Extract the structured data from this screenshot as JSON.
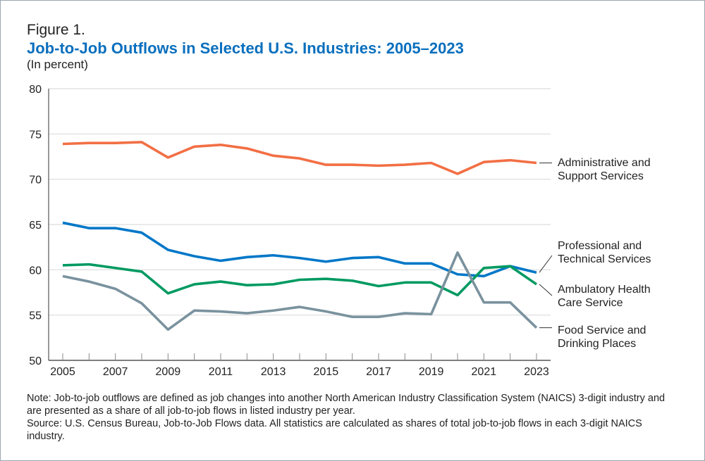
{
  "header": {
    "figure_label": "Figure 1.",
    "title": "Job-to-Job Outflows in Selected U.S. Industries: 2005–2023",
    "subtitle": "(In percent)"
  },
  "chart_data": {
    "type": "line",
    "title": "Job-to-Job Outflows in Selected U.S. Industries: 2005–2023",
    "ylabel": "(In percent)",
    "ylim": [
      50,
      80
    ],
    "yticks": [
      50,
      55,
      60,
      65,
      70,
      75,
      80
    ],
    "x": [
      2005,
      2006,
      2007,
      2008,
      2009,
      2010,
      2011,
      2012,
      2013,
      2014,
      2015,
      2016,
      2017,
      2018,
      2019,
      2020,
      2021,
      2022,
      2023
    ],
    "xtick_labels": [
      "2005",
      "2007",
      "2009",
      "2011",
      "2013",
      "2015",
      "2017",
      "2019",
      "2021",
      "2023"
    ],
    "grid": "horizontal",
    "legend": "direct labels right",
    "series": [
      {
        "name": "Administrative and Support Services",
        "label_lines": [
          "Administrative and",
          "Support Services"
        ],
        "color": "#f26f44",
        "values": [
          73.9,
          74.0,
          74.0,
          74.1,
          72.4,
          73.6,
          73.8,
          73.4,
          72.6,
          72.3,
          71.6,
          71.6,
          71.5,
          71.6,
          71.8,
          70.6,
          71.9,
          72.1,
          71.8
        ]
      },
      {
        "name": "Professional and Technical Services",
        "label_lines": [
          "Professional and",
          "Technical Services"
        ],
        "color": "#0077c8",
        "values": [
          65.2,
          64.6,
          64.6,
          64.1,
          62.2,
          61.5,
          61.0,
          61.4,
          61.6,
          61.3,
          60.9,
          61.3,
          61.4,
          60.7,
          60.7,
          59.5,
          59.3,
          60.4,
          59.7
        ]
      },
      {
        "name": "Ambulatory Health Care Service",
        "label_lines": [
          "Ambulatory Health",
          "Care Service"
        ],
        "color": "#009a61",
        "values": [
          60.5,
          60.6,
          60.2,
          59.8,
          57.4,
          58.4,
          58.7,
          58.3,
          58.4,
          58.9,
          59.0,
          58.8,
          58.2,
          58.6,
          58.6,
          57.2,
          60.2,
          60.4,
          58.4
        ]
      },
      {
        "name": "Food Service and Drinking Places",
        "label_lines": [
          "Food Service and",
          "Drinking Places"
        ],
        "color": "#7a929e",
        "values": [
          59.3,
          58.7,
          57.9,
          56.3,
          53.4,
          55.5,
          55.4,
          55.2,
          55.5,
          55.9,
          55.4,
          54.8,
          54.8,
          55.2,
          55.1,
          61.9,
          56.4,
          56.4,
          53.6
        ]
      }
    ]
  },
  "notes": {
    "note": "Note: Job-to-job outflows are defined as job changes into another North American Industry Classification System (NAICS) 3-digit industry and are presented as a share of all job-to-job flows in listed industry per year.",
    "source": "Source: U.S. Census Bureau, Job-to-Job Flows data. All statistics are calculated as shares of total job-to-job flows in each 3-digit NAICS industry."
  }
}
